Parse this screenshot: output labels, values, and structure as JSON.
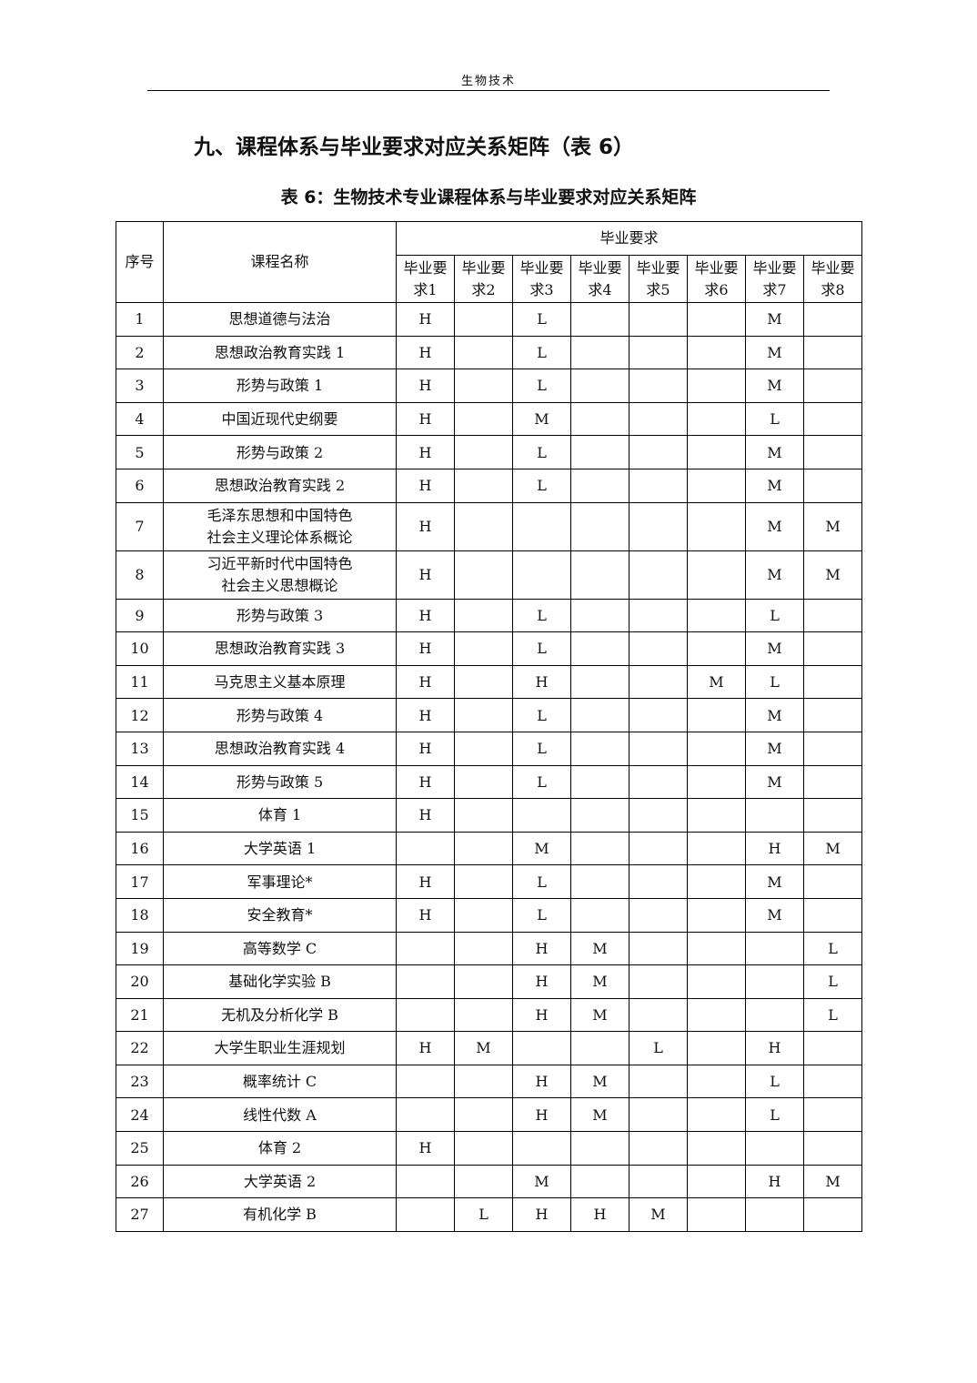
{
  "running_header": "生物技术",
  "section_title": "九、课程体系与毕业要求对应关系矩阵（表 6）",
  "table_caption": "表 6：生物技术专业课程体系与毕业要求对应关系矩阵",
  "table": {
    "col_index": "序号",
    "col_name": "课程名称",
    "col_group": "毕业要求",
    "req_headers": [
      [
        "毕业要",
        "求1"
      ],
      [
        "毕业要",
        "求2"
      ],
      [
        "毕业要",
        "求3"
      ],
      [
        "毕业要",
        "求4"
      ],
      [
        "毕业要",
        "求5"
      ],
      [
        "毕业要",
        "求6"
      ],
      [
        "毕业要",
        "求7"
      ],
      [
        "毕业要",
        "求8"
      ]
    ],
    "rows": [
      {
        "no": "1",
        "name": [
          "思想道德与法治"
        ],
        "v": [
          "H",
          "",
          "L",
          "",
          "",
          "",
          "M",
          ""
        ]
      },
      {
        "no": "2",
        "name": [
          "思想政治教育实践 1"
        ],
        "v": [
          "H",
          "",
          "L",
          "",
          "",
          "",
          "M",
          ""
        ]
      },
      {
        "no": "3",
        "name": [
          "形势与政策 1"
        ],
        "v": [
          "H",
          "",
          "L",
          "",
          "",
          "",
          "M",
          ""
        ]
      },
      {
        "no": "4",
        "name": [
          "中国近现代史纲要"
        ],
        "v": [
          "H",
          "",
          "M",
          "",
          "",
          "",
          "L",
          ""
        ]
      },
      {
        "no": "5",
        "name": [
          "形势与政策 2"
        ],
        "v": [
          "H",
          "",
          "L",
          "",
          "",
          "",
          "M",
          ""
        ]
      },
      {
        "no": "6",
        "name": [
          "思想政治教育实践 2"
        ],
        "v": [
          "H",
          "",
          "L",
          "",
          "",
          "",
          "M",
          ""
        ]
      },
      {
        "no": "7",
        "name": [
          "毛泽东思想和中国特色",
          "社会主义理论体系概论"
        ],
        "v": [
          "H",
          "",
          "",
          "",
          "",
          "",
          "M",
          "M"
        ]
      },
      {
        "no": "8",
        "name": [
          "习近平新时代中国特色",
          "社会主义思想概论"
        ],
        "v": [
          "H",
          "",
          "",
          "",
          "",
          "",
          "M",
          "M"
        ]
      },
      {
        "no": "9",
        "name": [
          "形势与政策 3"
        ],
        "v": [
          "H",
          "",
          "L",
          "",
          "",
          "",
          "L",
          ""
        ]
      },
      {
        "no": "10",
        "name": [
          "思想政治教育实践 3"
        ],
        "v": [
          "H",
          "",
          "L",
          "",
          "",
          "",
          "M",
          ""
        ]
      },
      {
        "no": "11",
        "name": [
          "马克思主义基本原理"
        ],
        "v": [
          "H",
          "",
          "H",
          "",
          "",
          "M",
          "L",
          ""
        ]
      },
      {
        "no": "12",
        "name": [
          "形势与政策 4"
        ],
        "v": [
          "H",
          "",
          "L",
          "",
          "",
          "",
          "M",
          ""
        ]
      },
      {
        "no": "13",
        "name": [
          "思想政治教育实践 4"
        ],
        "v": [
          "H",
          "",
          "L",
          "",
          "",
          "",
          "M",
          ""
        ]
      },
      {
        "no": "14",
        "name": [
          "形势与政策 5"
        ],
        "v": [
          "H",
          "",
          "L",
          "",
          "",
          "",
          "M",
          ""
        ]
      },
      {
        "no": "15",
        "name": [
          "体育 1"
        ],
        "v": [
          "H",
          "",
          "",
          "",
          "",
          "",
          "",
          ""
        ]
      },
      {
        "no": "16",
        "name": [
          "大学英语 1"
        ],
        "v": [
          "",
          "",
          "M",
          "",
          "",
          "",
          "H",
          "M"
        ]
      },
      {
        "no": "17",
        "name": [
          "军事理论*"
        ],
        "v": [
          "H",
          "",
          "L",
          "",
          "",
          "",
          "M",
          ""
        ]
      },
      {
        "no": "18",
        "name": [
          "安全教育*"
        ],
        "v": [
          "H",
          "",
          "L",
          "",
          "",
          "",
          "M",
          ""
        ]
      },
      {
        "no": "19",
        "name": [
          "高等数学 C"
        ],
        "v": [
          "",
          "",
          "H",
          "M",
          "",
          "",
          "",
          "L"
        ]
      },
      {
        "no": "20",
        "name": [
          "基础化学实验 B"
        ],
        "v": [
          "",
          "",
          "H",
          "M",
          "",
          "",
          "",
          "L"
        ]
      },
      {
        "no": "21",
        "name": [
          "无机及分析化学 B"
        ],
        "v": [
          "",
          "",
          "H",
          "M",
          "",
          "",
          "",
          "L"
        ]
      },
      {
        "no": "22",
        "name": [
          "大学生职业生涯规划"
        ],
        "v": [
          "H",
          "M",
          "",
          "",
          "L",
          "",
          "H",
          ""
        ]
      },
      {
        "no": "23",
        "name": [
          "概率统计 C"
        ],
        "v": [
          "",
          "",
          "H",
          "M",
          "",
          "",
          "L",
          ""
        ]
      },
      {
        "no": "24",
        "name": [
          "线性代数 A"
        ],
        "v": [
          "",
          "",
          "H",
          "M",
          "",
          "",
          "L",
          ""
        ]
      },
      {
        "no": "25",
        "name": [
          "体育 2"
        ],
        "v": [
          "H",
          "",
          "",
          "",
          "",
          "",
          "",
          ""
        ]
      },
      {
        "no": "26",
        "name": [
          "大学英语 2"
        ],
        "v": [
          "",
          "",
          "M",
          "",
          "",
          "",
          "H",
          "M"
        ]
      },
      {
        "no": "27",
        "name": [
          "有机化学 B"
        ],
        "v": [
          "",
          "L",
          "H",
          "H",
          "M",
          "",
          "",
          ""
        ]
      }
    ]
  }
}
